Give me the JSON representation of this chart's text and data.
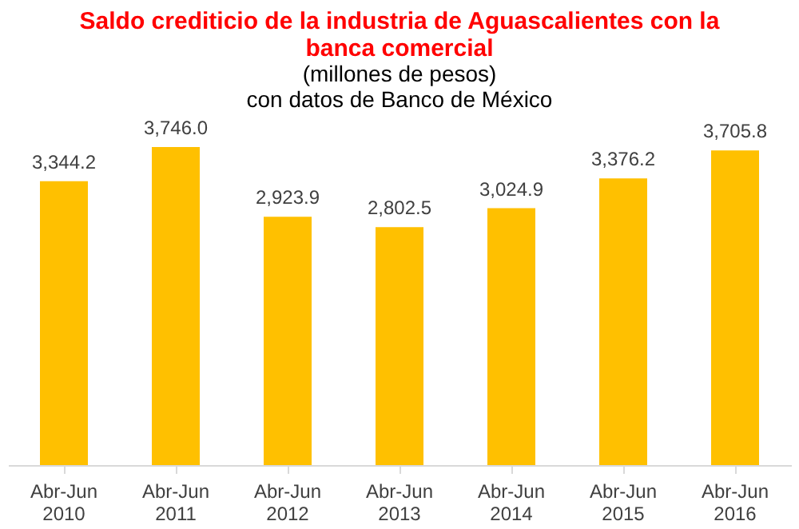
{
  "chart_data": {
    "type": "bar",
    "title": "Saldo crediticio de la industria de Aguascalientes con la banca comercial",
    "subtitle": "(millones de pesos)",
    "annotations": [
      "con datos de Banco de México"
    ],
    "categories": [
      "Abr-Jun 2010",
      "Abr-Jun 2011",
      "Abr-Jun 2012",
      "Abr-Jun 2013",
      "Abr-Jun 2014",
      "Abr-Jun 2015",
      "Abr-Jun 2016"
    ],
    "values": [
      3344.2,
      3746.0,
      2923.9,
      2802.5,
      3024.9,
      3376.2,
      3705.8
    ],
    "value_labels": [
      "3,344.2",
      "3,746.0",
      "2,923.9",
      "2,802.5",
      "3,024.9",
      "3,376.2",
      "3,705.8"
    ],
    "color": "#ffc000",
    "grid": false
  }
}
